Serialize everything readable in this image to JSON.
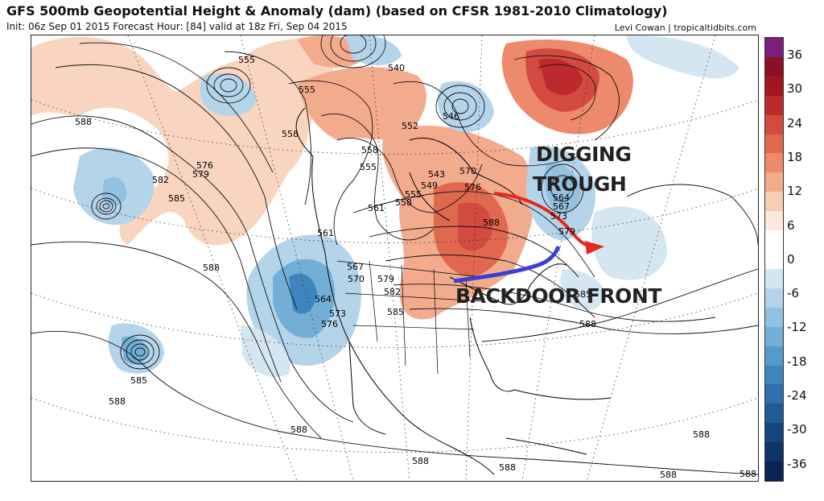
{
  "header": {
    "title": "GFS 500mb Geopotential Height & Anomaly (dam) (based on CFSR 1981-2010 Climatology)",
    "subtitle": "Init: 06z Sep 01 2015   Forecast Hour: [84]   valid at 18z Fri, Sep 04 2015",
    "credit": "Levi Cowan | tropicaltidbits.com"
  },
  "annotations": {
    "digging": "DIGGING",
    "trough": "TROUGH",
    "backdoor_front": "BACKDOOR FRONT"
  },
  "contour_labels": [
    "555",
    "540",
    "555",
    "558",
    "546",
    "552",
    "558",
    "555",
    "543",
    "549",
    "555",
    "558",
    "561",
    "570",
    "576",
    "564",
    "567",
    "573",
    "579",
    "588",
    "576",
    "579",
    "582",
    "585",
    "588",
    "561",
    "567",
    "570",
    "579",
    "582",
    "564",
    "573",
    "576",
    "585",
    "585",
    "588",
    "588",
    "588",
    "588",
    "588",
    "588",
    "588",
    "588",
    "588",
    "585"
  ],
  "colorbar": {
    "labels": [
      "36",
      "30",
      "24",
      "18",
      "12",
      "6",
      "0",
      "-6",
      "-12",
      "-18",
      "-24",
      "-30",
      "-36"
    ],
    "colors": [
      "#7a1f7a",
      "#8c0f26",
      "#a3151f",
      "#bd2a2d",
      "#d24a40",
      "#e0684f",
      "#ec8a6b",
      "#f3ab8e",
      "#f8cdb5",
      "#fde8dc",
      "#ffffff",
      "#ffffff",
      "#d4e6f2",
      "#b4d4ea",
      "#93c2e0",
      "#72aed6",
      "#559acb",
      "#3f85bd",
      "#2f6fab",
      "#225a96",
      "#17467f",
      "#0f3468",
      "#0b2350"
    ]
  },
  "legend": {
    "colors": {
      "front_arrow": "#3b3fd6",
      "trough_arrow": "#e8261f"
    }
  }
}
